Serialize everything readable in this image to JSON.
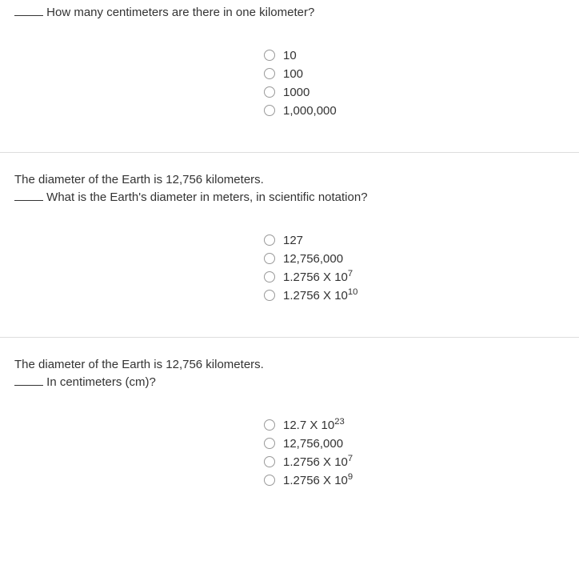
{
  "questions": [
    {
      "prefix": "",
      "prompt_before_blank": "",
      "prompt_after_blank": " How many centimeters are there in one kilometer?",
      "options": [
        {
          "text": "10",
          "sup": ""
        },
        {
          "text": "100",
          "sup": ""
        },
        {
          "text": "1000",
          "sup": ""
        },
        {
          "text": "1,000,000",
          "sup": ""
        }
      ]
    },
    {
      "prefix": "The diameter of the Earth is 12,756 kilometers.",
      "prompt_before_blank": "",
      "prompt_after_blank": " What is the Earth's diameter in meters, in scientific notation?",
      "options": [
        {
          "text": "127",
          "sup": ""
        },
        {
          "text": "12,756,000",
          "sup": ""
        },
        {
          "text": "1.2756 X 10",
          "sup": "7"
        },
        {
          "text": "1.2756 X 10",
          "sup": "10"
        }
      ]
    },
    {
      "prefix": "The diameter of the Earth is 12,756 kilometers.",
      "prompt_before_blank": "",
      "prompt_after_blank": " In centimeters (cm)?",
      "options": [
        {
          "text": "12.7 X 10",
          "sup": "23"
        },
        {
          "text": "12,756,000",
          "sup": ""
        },
        {
          "text": "1.2756 X 10",
          "sup": "7"
        },
        {
          "text": "1.2756 X 10",
          "sup": "9"
        }
      ]
    }
  ]
}
